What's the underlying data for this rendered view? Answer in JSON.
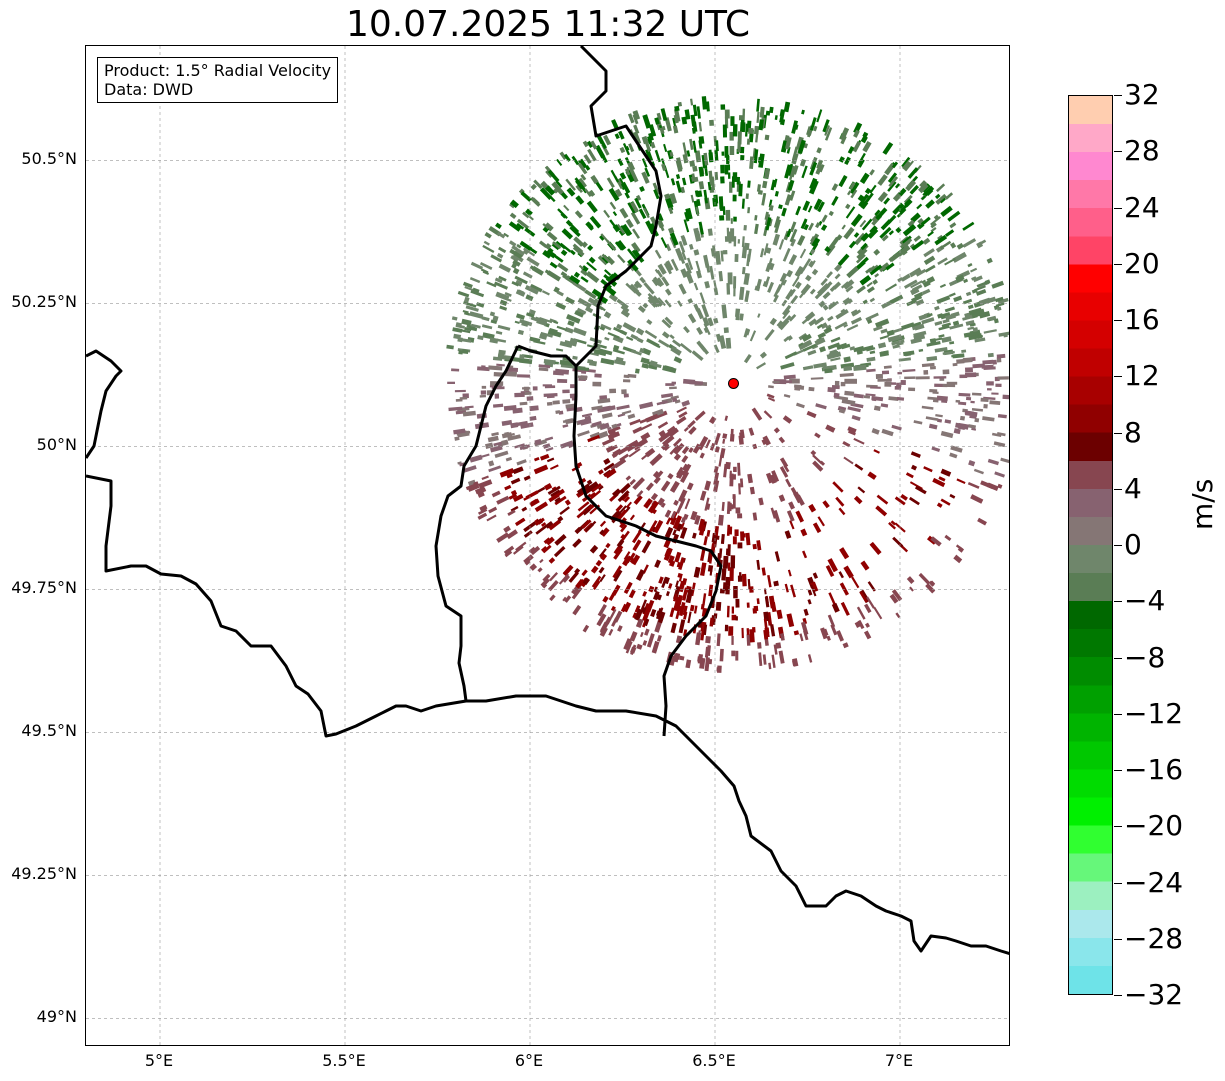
{
  "title": "10.07.2025 11:32 UTC",
  "info": {
    "product": "Product: 1.5° Radial Velocity",
    "data": "Data: DWD"
  },
  "map": {
    "lon_range": [
      4.8,
      7.3
    ],
    "lat_range": [
      48.95,
      50.7
    ],
    "lat_ticks": [
      {
        "value": 49.0,
        "label": "49°N"
      },
      {
        "value": 49.25,
        "label": "49.25°N"
      },
      {
        "value": 49.5,
        "label": "49.5°N"
      },
      {
        "value": 49.75,
        "label": "49.75°N"
      },
      {
        "value": 50.0,
        "label": "50°N"
      },
      {
        "value": 50.25,
        "label": "50.25°N"
      },
      {
        "value": 50.5,
        "label": "50.5°N"
      }
    ],
    "lon_ticks": [
      {
        "value": 5.0,
        "label": "5°E"
      },
      {
        "value": 5.5,
        "label": "5.5°E"
      },
      {
        "value": 6.0,
        "label": "6°E"
      },
      {
        "value": 6.5,
        "label": "6.5°E"
      },
      {
        "value": 7.0,
        "label": "7°E"
      }
    ],
    "radar_site": {
      "lon": 6.55,
      "lat": 50.11,
      "color": "#ff0000"
    },
    "gridlines": true
  },
  "colorbar": {
    "unit": "m/s",
    "min": -32,
    "max": 32,
    "tick_labels": [
      "32",
      "28",
      "24",
      "20",
      "16",
      "12",
      "8",
      "4",
      "0",
      "−4",
      "−8",
      "−12",
      "−16",
      "−20",
      "−24",
      "−28",
      "−32"
    ],
    "colors_top_to_bottom": [
      "#ffceb0",
      "#ffa8c8",
      "#ff88d0",
      "#ff78a8",
      "#ff5f8a",
      "#ff4466",
      "#ff0000",
      "#e80000",
      "#d40000",
      "#c00000",
      "#a80000",
      "#900000",
      "#6c0000",
      "#874650",
      "#876270",
      "#857675",
      "#6f866b",
      "#5a7d55",
      "#006800",
      "#007800",
      "#008c00",
      "#00a000",
      "#00b400",
      "#00c800",
      "#00dc00",
      "#00f000",
      "#30ff30",
      "#66f77a",
      "#9cf0c0",
      "#abe8ec",
      "#8ae6eb",
      "#6ee3e8"
    ]
  }
}
